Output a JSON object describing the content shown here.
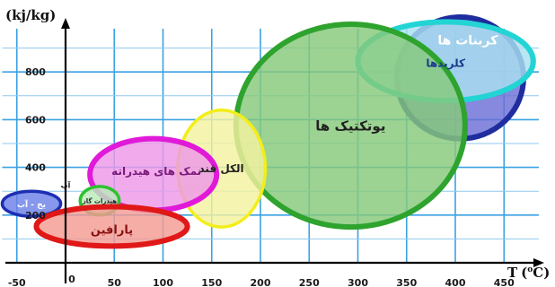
{
  "chart_data": {
    "type": "scatter",
    "title": "",
    "ylabel": "(kj/kg)",
    "xlabel": "T",
    "xlabel_unit": "C",
    "xlabel_degree": "o",
    "x_ticks": [
      -50,
      0,
      50,
      100,
      150,
      200,
      250,
      300,
      350,
      400,
      450
    ],
    "y_ticks": [
      200,
      400,
      600,
      800
    ],
    "xlim": [
      -65,
      480
    ],
    "ylim": [
      0,
      1000
    ],
    "grid": true,
    "regions": [
      {
        "label": "کربنات ها",
        "x_range": [
          340,
          470
        ],
        "y_range": [
          520,
          1030
        ],
        "stroke": "#1f2d9e",
        "fill": "#6b6fd6"
      },
      {
        "label": "کلریدها",
        "x_range": [
          300,
          480
        ],
        "y_range": [
          680,
          1010
        ],
        "stroke": "#22d4d4",
        "fill": "#a9e1f0"
      },
      {
        "label": "یوتکتیک ها",
        "x_range": [
          175,
          410
        ],
        "y_range": [
          150,
          1000
        ],
        "stroke": "#2ea32e",
        "fill": "#86c97a"
      },
      {
        "label": "الکل قند",
        "x_range": [
          115,
          205
        ],
        "y_range": [
          150,
          640
        ],
        "stroke": "#f2ee1a",
        "fill": "#f4f2a0"
      },
      {
        "label": "نمک های هیدراته",
        "x_range": [
          25,
          155
        ],
        "y_range": [
          220,
          520
        ],
        "stroke": "#e01ad8",
        "fill": "#ee99e8"
      },
      {
        "label": "هیدرات گاز",
        "x_range": [
          15,
          55
        ],
        "y_range": [
          200,
          320
        ],
        "stroke": "#2ec22e",
        "fill": "#b9ecb9"
      },
      {
        "label": "یخ - آب",
        "x_range": [
          -65,
          -5
        ],
        "y_range": [
          195,
          300
        ],
        "stroke": "#1d2fb4",
        "fill": "#6b80e8"
      },
      {
        "label": "آب",
        "x_range": [
          -8,
          8
        ],
        "y_range": [
          310,
          340
        ],
        "stroke": "#1d2fb4",
        "fill": "#ffffff"
      },
      {
        "label": "پارافین",
        "x_range": [
          -30,
          125
        ],
        "y_range": [
          70,
          235
        ],
        "stroke": "#e01818",
        "fill": "#f39b93"
      }
    ]
  }
}
